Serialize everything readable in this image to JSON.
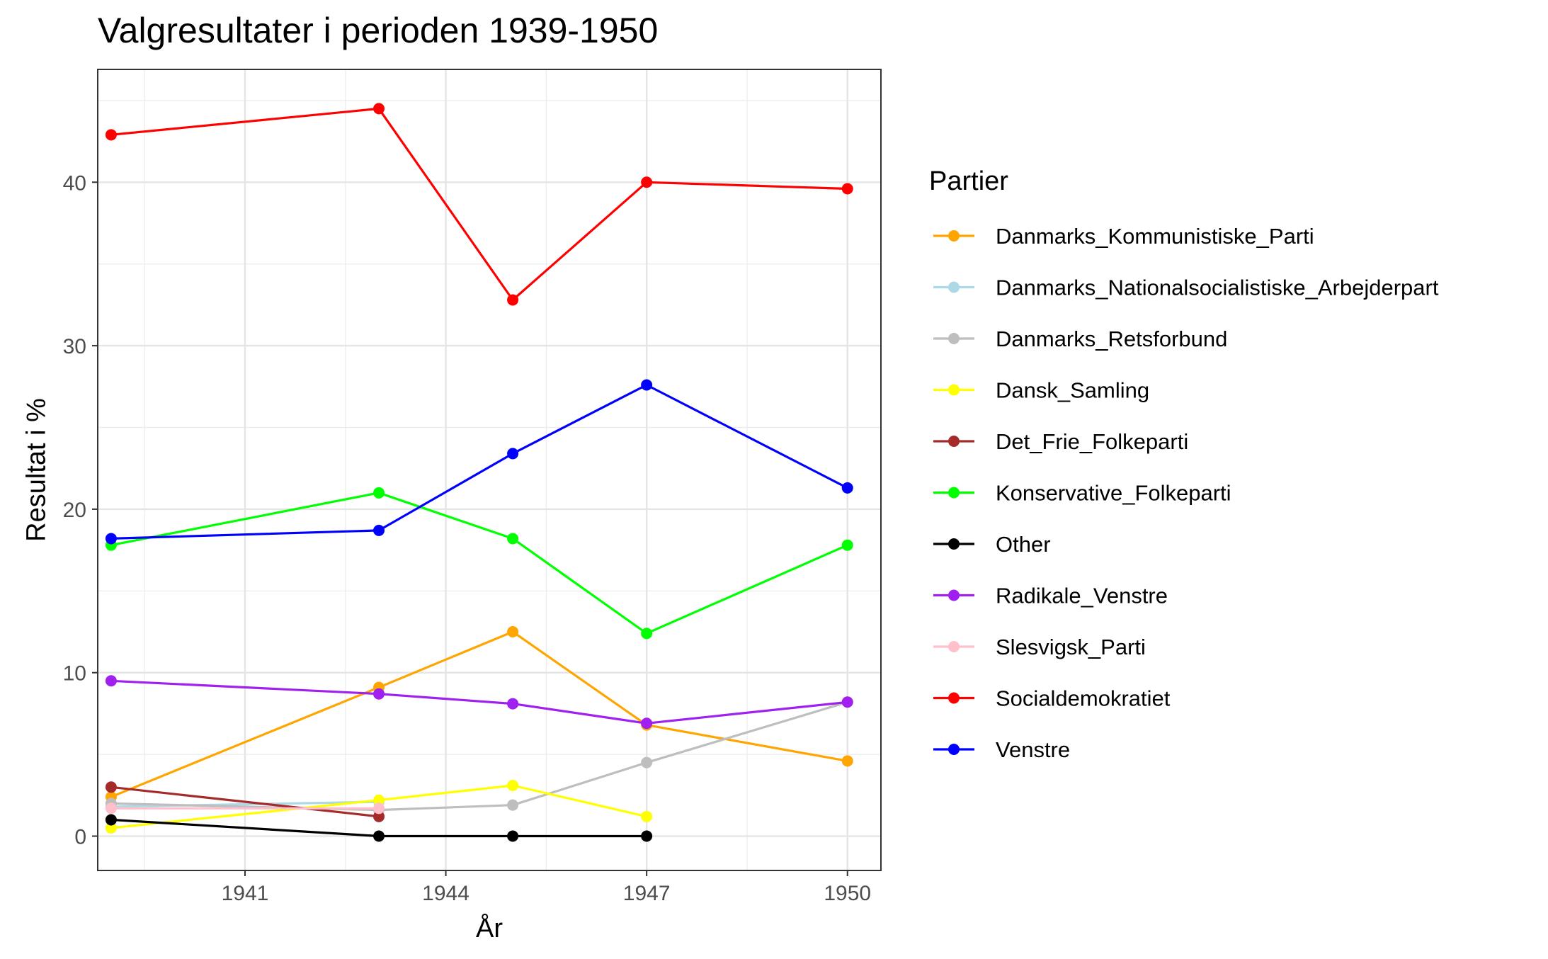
{
  "chart_data": {
    "type": "line",
    "title": "Valgresultater i perioden 1939-1950",
    "xlabel": "År",
    "ylabel": "Resultat i %",
    "xlim": [
      1938.8,
      1950.5
    ],
    "ylim": [
      -2.1,
      46.9
    ],
    "x_ticks": [
      1941,
      1944,
      1947,
      1950
    ],
    "y_ticks": [
      0,
      10,
      20,
      30,
      40
    ],
    "grid": true,
    "legend_title": "Partier",
    "legend_position": "right",
    "series": [
      {
        "name": "Danmarks_Kommunistiske_Parti",
        "color": "#FFA500",
        "points": [
          [
            1939,
            2.4
          ],
          [
            1943,
            9.1
          ],
          [
            1945,
            12.5
          ],
          [
            1947,
            6.8
          ],
          [
            1950,
            4.6
          ]
        ]
      },
      {
        "name": "Danmarks_Nationalsocialistiske_Arbejderpart",
        "color": "#ADD8E6",
        "points": [
          [
            1939,
            1.8
          ],
          [
            1943,
            2.1
          ]
        ]
      },
      {
        "name": "Danmarks_Retsforbund",
        "color": "#BEBEBE",
        "points": [
          [
            1939,
            2.0
          ],
          [
            1943,
            1.6
          ],
          [
            1945,
            1.9
          ],
          [
            1947,
            4.5
          ],
          [
            1950,
            8.2
          ]
        ]
      },
      {
        "name": "Dansk_Samling",
        "color": "#FFFF00",
        "points": [
          [
            1939,
            0.5
          ],
          [
            1943,
            2.2
          ],
          [
            1945,
            3.1
          ],
          [
            1947,
            1.2
          ]
        ]
      },
      {
        "name": "Det_Frie_Folkeparti",
        "color": "#A52A2A",
        "points": [
          [
            1939,
            3.0
          ],
          [
            1943,
            1.2
          ]
        ]
      },
      {
        "name": "Konservative_Folkeparti",
        "color": "#00FF00",
        "points": [
          [
            1939,
            17.8
          ],
          [
            1943,
            21.0
          ],
          [
            1945,
            18.2
          ],
          [
            1947,
            12.4
          ],
          [
            1950,
            17.8
          ]
        ]
      },
      {
        "name": "Other",
        "color": "#000000",
        "points": [
          [
            1939,
            1.0
          ],
          [
            1943,
            0.0
          ],
          [
            1945,
            0.0
          ],
          [
            1947,
            0.0
          ]
        ]
      },
      {
        "name": "Radikale_Venstre",
        "color": "#A020F0",
        "points": [
          [
            1939,
            9.5
          ],
          [
            1943,
            8.7
          ],
          [
            1945,
            8.1
          ],
          [
            1947,
            6.9
          ],
          [
            1950,
            8.2
          ]
        ]
      },
      {
        "name": "Slesvigsk_Parti",
        "color": "#FFC0CB",
        "points": [
          [
            1939,
            1.7
          ],
          [
            1943,
            1.7
          ]
        ]
      },
      {
        "name": "Socialdemokratiet",
        "color": "#FF0000",
        "points": [
          [
            1939,
            42.9
          ],
          [
            1943,
            44.5
          ],
          [
            1945,
            32.8
          ],
          [
            1947,
            40.0
          ],
          [
            1950,
            39.6
          ]
        ]
      },
      {
        "name": "Venstre",
        "color": "#0000FF",
        "points": [
          [
            1939,
            18.2
          ],
          [
            1943,
            18.7
          ],
          [
            1945,
            23.4
          ],
          [
            1947,
            27.6
          ],
          [
            1950,
            21.3
          ]
        ]
      }
    ]
  }
}
